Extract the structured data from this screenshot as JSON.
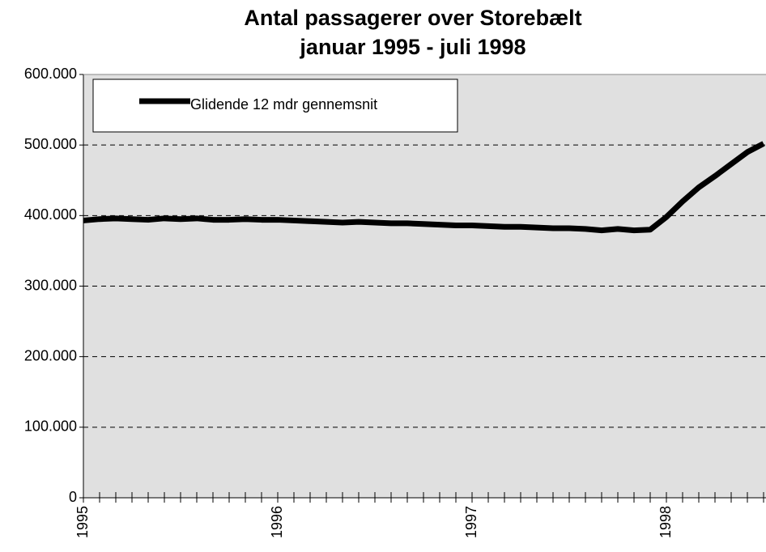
{
  "chart_data": {
    "type": "line",
    "title": "Antal passagerer over Storebælt",
    "subtitle": "januar 1995 - juli 1998",
    "categories": [
      "1995",
      null,
      null,
      null,
      null,
      null,
      null,
      null,
      null,
      null,
      null,
      null,
      "1996",
      null,
      null,
      null,
      null,
      null,
      null,
      null,
      null,
      null,
      null,
      null,
      "1997",
      null,
      null,
      null,
      null,
      null,
      null,
      null,
      null,
      null,
      null,
      null,
      "1998",
      null,
      null,
      null,
      null,
      null,
      null
    ],
    "series": [
      {
        "name": "Glidende 12 mdr gennemsnit",
        "color": "#000000",
        "values": [
          393000,
          395000,
          396000,
          395000,
          394000,
          396000,
          395000,
          396000,
          394000,
          394000,
          395000,
          394000,
          394000,
          393000,
          392000,
          391000,
          390000,
          391000,
          390000,
          389000,
          389000,
          388000,
          387000,
          386000,
          386000,
          385000,
          384000,
          384000,
          383000,
          382000,
          382000,
          381000,
          379000,
          381000,
          379000,
          380000,
          398000,
          420000,
          440000,
          456000,
          473000,
          490000,
          502000
        ]
      }
    ],
    "ylim": [
      0,
      600000
    ],
    "yticks": [
      0,
      {
        "value": 100000,
        "label": "100.000"
      },
      {
        "value": 200000,
        "label": "200.000"
      },
      {
        "value": 300000,
        "label": "300.000"
      },
      {
        "value": 400000,
        "label": "400.000"
      },
      {
        "value": 500000,
        "label": "500.000"
      },
      {
        "value": 600000,
        "label": "600.000"
      }
    ],
    "grid": true,
    "legend": "top-left"
  }
}
